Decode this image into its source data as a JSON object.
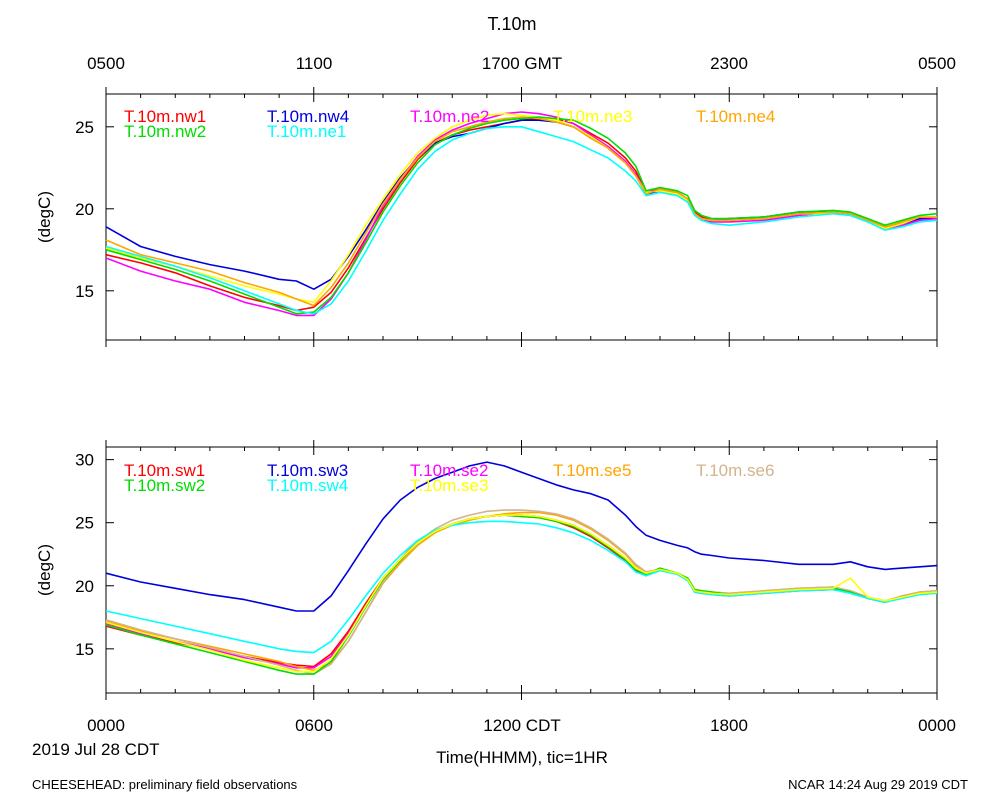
{
  "title": "T.10m",
  "top_axis": {
    "tick_labels": [
      "0500",
      "1100",
      "1700 GMT",
      "2300",
      "0500"
    ]
  },
  "bottom_axis": {
    "tick_labels": [
      "0000",
      "0600",
      "1200 CDT",
      "1800",
      "0000"
    ],
    "xlabel": "Time(HHMM), tic=1HR",
    "date_label": "2019 Jul 28 CDT"
  },
  "footer": {
    "left": "CHEESEHEAD: preliminary field observations",
    "right": "NCAR 14:24 Aug 29 2019 CDT"
  },
  "colors": {
    "red": "#ff0000",
    "blue": "#0000dd",
    "magenta": "#ff00ff",
    "yellow": "#ffff00",
    "orange": "#ffa500",
    "green": "#00dd00",
    "cyan": "#00ffff",
    "tan": "#d2b48c"
  },
  "chart_data": [
    {
      "type": "line",
      "name": "panel-north",
      "ylabel": "(degC)",
      "xlim": [
        0,
        24
      ],
      "ylim": [
        12,
        27
      ],
      "yticks": [
        15,
        20,
        25
      ],
      "x": [
        0,
        1,
        2,
        3,
        4,
        5,
        5.5,
        6,
        6.5,
        7,
        7.5,
        8,
        8.5,
        9,
        9.5,
        10,
        10.5,
        11,
        11.5,
        12,
        12.5,
        13,
        13.5,
        14,
        14.5,
        15,
        15.3,
        15.6,
        16,
        16.5,
        16.8,
        17,
        17.2,
        17.5,
        18,
        19,
        20,
        21,
        21.5,
        22,
        22.5,
        23,
        23.5,
        24
      ],
      "series": [
        {
          "name": "T.10m.nw1",
          "color": "#ff0000",
          "values": [
            17.2,
            16.7,
            16.1,
            15.3,
            14.6,
            14.1,
            13.8,
            14.0,
            14.9,
            16.4,
            18.2,
            20.0,
            21.6,
            23.0,
            24.0,
            24.5,
            24.8,
            25.0,
            25.2,
            25.4,
            25.5,
            25.5,
            25.2,
            24.6,
            24.0,
            23.1,
            22.3,
            21.0,
            21.2,
            21.0,
            20.6,
            19.8,
            19.5,
            19.3,
            19.3,
            19.4,
            19.7,
            19.8,
            19.7,
            19.3,
            18.9,
            19.1,
            19.4,
            19.5
          ]
        },
        {
          "name": "T.10m.nw4",
          "color": "#0000dd",
          "values": [
            18.9,
            17.7,
            17.1,
            16.6,
            16.2,
            15.7,
            15.6,
            15.1,
            15.7,
            17.1,
            18.7,
            20.4,
            21.9,
            23.1,
            24.0,
            24.4,
            24.6,
            24.9,
            25.2,
            25.4,
            25.4,
            25.3,
            25.0,
            24.4,
            23.7,
            22.8,
            22.1,
            20.9,
            21.1,
            20.9,
            20.5,
            19.7,
            19.4,
            19.3,
            19.4,
            19.5,
            19.8,
            19.8,
            19.6,
            19.2,
            18.8,
            19.1,
            19.4,
            19.4
          ]
        },
        {
          "name": "T.10m.ne2",
          "color": "#ff00ff",
          "values": [
            17.0,
            16.2,
            15.6,
            15.1,
            14.3,
            13.8,
            13.5,
            13.5,
            14.5,
            16.1,
            18.1,
            20.2,
            21.8,
            23.2,
            24.2,
            24.8,
            25.2,
            25.5,
            25.8,
            25.9,
            25.8,
            25.6,
            25.2,
            24.5,
            23.8,
            22.9,
            22.1,
            21.0,
            21.2,
            21.0,
            20.6,
            19.7,
            19.3,
            19.2,
            19.2,
            19.3,
            19.6,
            19.8,
            19.7,
            19.3,
            18.8,
            19.0,
            19.3,
            19.4
          ]
        },
        {
          "name": "T.10m.ne3",
          "color": "#ffff00",
          "values": [
            17.6,
            17.0,
            16.5,
            15.9,
            15.3,
            14.8,
            14.5,
            14.3,
            15.6,
            17.2,
            19.0,
            20.6,
            22.1,
            23.4,
            24.3,
            25.0,
            25.4,
            25.7,
            25.8,
            25.7,
            25.6,
            25.4,
            25.0,
            24.4,
            23.7,
            22.8,
            22.0,
            21.0,
            21.1,
            20.9,
            20.5,
            19.7,
            19.4,
            19.3,
            19.3,
            19.4,
            19.7,
            19.7,
            19.6,
            19.2,
            18.8,
            19.1,
            19.5,
            19.5
          ]
        },
        {
          "name": "T.10m.ne4",
          "color": "#ffa500",
          "values": [
            18.1,
            17.2,
            16.7,
            16.2,
            15.5,
            14.9,
            14.5,
            14.1,
            15.2,
            16.7,
            18.5,
            20.3,
            21.8,
            23.1,
            24.1,
            24.7,
            25.0,
            25.3,
            25.5,
            25.6,
            25.5,
            25.3,
            25.0,
            24.3,
            23.7,
            22.8,
            22.0,
            20.9,
            21.2,
            21.0,
            20.6,
            19.7,
            19.4,
            19.3,
            19.3,
            19.4,
            19.7,
            19.8,
            19.7,
            19.3,
            18.9,
            19.2,
            19.5,
            19.5
          ]
        },
        {
          "name": "T.10m.nw2",
          "color": "#00dd00",
          "values": [
            17.5,
            16.9,
            16.3,
            15.6,
            14.8,
            14.0,
            13.6,
            13.7,
            14.6,
            16.1,
            17.9,
            19.8,
            21.4,
            22.8,
            23.9,
            24.5,
            24.9,
            25.2,
            25.4,
            25.5,
            25.6,
            25.5,
            25.4,
            24.9,
            24.3,
            23.4,
            22.6,
            21.1,
            21.3,
            21.1,
            20.8,
            19.9,
            19.6,
            19.4,
            19.4,
            19.5,
            19.8,
            19.9,
            19.8,
            19.4,
            19.0,
            19.3,
            19.6,
            19.7
          ]
        },
        {
          "name": "T.10m.ne1",
          "color": "#00ffff",
          "values": [
            17.7,
            17.1,
            16.5,
            15.8,
            15.0,
            14.2,
            13.8,
            13.6,
            14.2,
            15.6,
            17.4,
            19.3,
            20.9,
            22.4,
            23.5,
            24.2,
            24.6,
            24.9,
            25.0,
            25.0,
            24.7,
            24.4,
            24.1,
            23.6,
            23.1,
            22.3,
            21.7,
            20.8,
            21.0,
            20.8,
            20.4,
            19.6,
            19.3,
            19.1,
            19.0,
            19.2,
            19.5,
            19.7,
            19.6,
            19.2,
            18.7,
            18.9,
            19.2,
            19.3
          ]
        }
      ]
    },
    {
      "type": "line",
      "name": "panel-south",
      "ylabel": "(degC)",
      "xlim": [
        0,
        24
      ],
      "ylim": [
        11.5,
        31
      ],
      "yticks": [
        15,
        20,
        25,
        30
      ],
      "x": [
        0,
        1,
        2,
        3,
        4,
        5,
        5.5,
        6,
        6.5,
        7,
        7.5,
        8,
        8.5,
        9,
        9.5,
        10,
        10.5,
        11,
        11.5,
        12,
        12.5,
        13,
        13.5,
        14,
        14.5,
        15,
        15.3,
        15.6,
        16,
        16.5,
        16.8,
        17,
        17.2,
        17.5,
        18,
        19,
        20,
        21,
        21.5,
        22,
        22.5,
        23,
        23.5,
        24
      ],
      "series": [
        {
          "name": "T.10m.sw1",
          "color": "#ff0000",
          "values": [
            16.8,
            16.1,
            15.5,
            15.0,
            14.4,
            13.9,
            13.7,
            13.6,
            14.6,
            16.4,
            18.6,
            20.6,
            22.1,
            23.5,
            24.3,
            24.9,
            25.3,
            25.5,
            25.6,
            25.5,
            25.4,
            25.1,
            24.6,
            23.9,
            23.0,
            22.0,
            21.2,
            20.8,
            21.3,
            21.0,
            20.5,
            19.6,
            19.5,
            19.4,
            19.3,
            19.5,
            19.7,
            19.7,
            19.5,
            19.0,
            18.7,
            19.2,
            19.5,
            19.5
          ]
        },
        {
          "name": "T.10m.sw3",
          "color": "#0000dd",
          "values": [
            21.0,
            20.3,
            19.8,
            19.3,
            18.9,
            18.3,
            18.0,
            18.0,
            19.2,
            21.2,
            23.3,
            25.3,
            26.8,
            27.8,
            28.5,
            29.0,
            29.5,
            29.8,
            29.5,
            29.0,
            28.5,
            28.0,
            27.6,
            27.3,
            26.8,
            25.6,
            24.7,
            24.0,
            23.6,
            23.2,
            23.0,
            22.7,
            22.5,
            22.4,
            22.2,
            22.0,
            21.7,
            21.7,
            21.9,
            21.5,
            21.3,
            21.4,
            21.5,
            21.6
          ]
        },
        {
          "name": "T.10m.se2",
          "color": "#ff00ff",
          "values": [
            17.0,
            16.2,
            15.6,
            15.0,
            14.3,
            13.8,
            13.5,
            13.5,
            14.4,
            16.2,
            18.4,
            20.5,
            22.0,
            23.4,
            24.3,
            24.9,
            25.3,
            25.5,
            25.6,
            25.6,
            25.5,
            25.2,
            24.8,
            24.1,
            23.2,
            22.2,
            21.4,
            21.0,
            21.3,
            21.0,
            20.5,
            19.5,
            19.4,
            19.3,
            19.2,
            19.4,
            19.6,
            19.7,
            19.5,
            19.0,
            18.7,
            19.1,
            19.4,
            19.5
          ]
        },
        {
          "name": "T.10m.se5",
          "color": "#ffa500",
          "values": [
            17.2,
            16.4,
            15.8,
            15.2,
            14.6,
            14.0,
            13.6,
            13.3,
            13.9,
            15.6,
            17.9,
            20.2,
            21.8,
            23.2,
            24.2,
            24.8,
            25.2,
            25.5,
            25.7,
            25.8,
            25.8,
            25.6,
            25.2,
            24.5,
            23.6,
            22.5,
            21.6,
            21.1,
            21.3,
            21.0,
            20.6,
            19.7,
            19.6,
            19.5,
            19.4,
            19.6,
            19.8,
            19.9,
            19.6,
            19.1,
            18.8,
            19.2,
            19.5,
            19.6
          ]
        },
        {
          "name": "T.10m.se6",
          "color": "#d2b48c",
          "values": [
            17.3,
            16.5,
            15.8,
            15.1,
            14.4,
            13.7,
            13.3,
            13.0,
            13.8,
            15.6,
            17.9,
            20.3,
            22.0,
            23.5,
            24.5,
            25.2,
            25.6,
            25.9,
            26.0,
            26.0,
            25.9,
            25.7,
            25.3,
            24.6,
            23.7,
            22.6,
            21.7,
            21.1,
            21.3,
            21.0,
            20.6,
            19.7,
            19.6,
            19.5,
            19.4,
            19.6,
            19.8,
            19.9,
            19.6,
            19.1,
            18.8,
            19.2,
            19.5,
            19.6
          ]
        },
        {
          "name": "T.10m.sw2",
          "color": "#00dd00",
          "values": [
            16.9,
            16.1,
            15.4,
            14.7,
            14.0,
            13.3,
            13.0,
            13.0,
            14.0,
            16.0,
            18.3,
            20.5,
            22.0,
            23.4,
            24.3,
            24.9,
            25.3,
            25.5,
            25.6,
            25.5,
            25.4,
            25.1,
            24.7,
            24.0,
            23.1,
            22.1,
            21.3,
            20.9,
            21.4,
            21.0,
            20.6,
            19.7,
            19.6,
            19.5,
            19.3,
            19.5,
            19.7,
            19.8,
            19.5,
            19.0,
            18.7,
            19.1,
            19.4,
            19.5
          ]
        },
        {
          "name": "T.10m.sw4",
          "color": "#00ffff",
          "values": [
            18.0,
            17.4,
            16.8,
            16.2,
            15.6,
            15.0,
            14.8,
            14.7,
            15.6,
            17.3,
            19.2,
            21.0,
            22.4,
            23.6,
            24.4,
            24.8,
            25.0,
            25.1,
            25.1,
            25.0,
            24.9,
            24.6,
            24.2,
            23.6,
            22.8,
            21.9,
            21.1,
            20.8,
            21.2,
            20.9,
            20.4,
            19.5,
            19.4,
            19.3,
            19.2,
            19.4,
            19.6,
            19.7,
            19.4,
            19.0,
            18.7,
            19.0,
            19.3,
            19.4
          ]
        },
        {
          "name": "T.10m.se3",
          "color": "#ffff00",
          "values": [
            17.1,
            16.3,
            15.6,
            14.9,
            14.1,
            13.5,
            13.2,
            13.2,
            14.2,
            16.1,
            18.4,
            20.6,
            22.1,
            23.4,
            24.3,
            24.9,
            25.3,
            25.5,
            25.6,
            25.6,
            25.5,
            25.2,
            24.8,
            24.1,
            23.2,
            22.2,
            21.4,
            21.0,
            21.3,
            21.0,
            20.5,
            19.6,
            19.5,
            19.4,
            19.3,
            19.5,
            19.7,
            19.8,
            20.6,
            19.1,
            18.8,
            19.1,
            19.4,
            19.5
          ]
        }
      ]
    }
  ]
}
